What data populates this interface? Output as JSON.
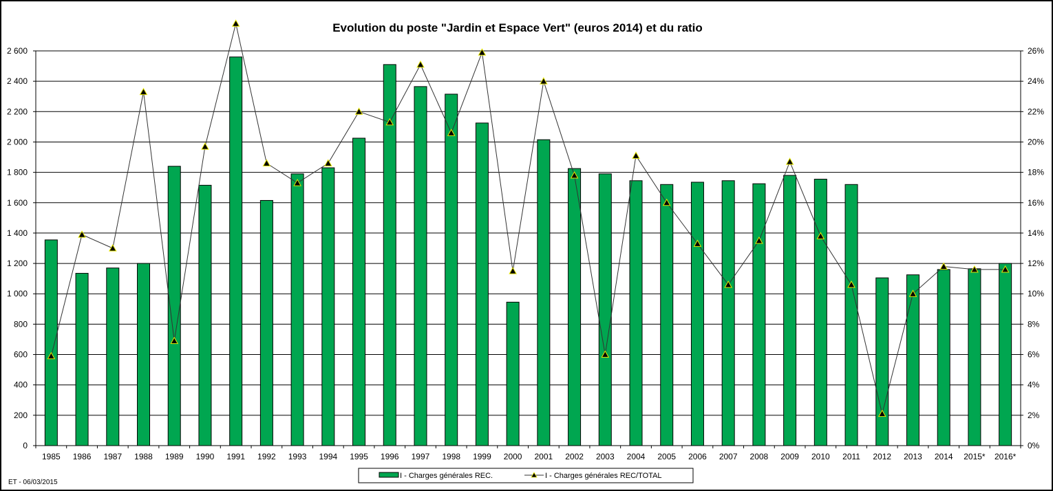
{
  "chart_data": {
    "type": "bar",
    "title": "Evolution du poste \"Jardin et Espace Vert\" (euros 2014) et du ratio",
    "categories": [
      "1985",
      "1986",
      "1987",
      "1988",
      "1989",
      "1990",
      "1991",
      "1992",
      "1993",
      "1994",
      "1995",
      "1996",
      "1997",
      "1998",
      "1999",
      "2000",
      "2001",
      "2002",
      "2003",
      "2004",
      "2005",
      "2006",
      "2007",
      "2008",
      "2009",
      "2010",
      "2011",
      "2012",
      "2013",
      "2014",
      "2015*",
      "2016*"
    ],
    "series": [
      {
        "name": "I - Charges générales REC.",
        "type": "bar",
        "axis": "left",
        "color": "#00a650",
        "values": [
          1355,
          1135,
          1170,
          1200,
          1840,
          1715,
          2560,
          1615,
          1790,
          1830,
          2025,
          2510,
          2365,
          2315,
          2125,
          945,
          2015,
          1825,
          1790,
          1745,
          1720,
          1735,
          1745,
          1725,
          1780,
          1755,
          1720,
          1105,
          1125,
          1160,
          1165,
          1200
        ]
      },
      {
        "name": "I - Charges générales REC/TOTAL",
        "type": "line",
        "axis": "right",
        "color": "#333333",
        "marker_color": "#000000",
        "marker_edge": "#e8e800",
        "values": [
          5.9,
          13.9,
          13.0,
          23.3,
          6.9,
          19.7,
          27.8,
          18.6,
          17.3,
          18.6,
          22.0,
          21.3,
          25.1,
          20.6,
          25.9,
          11.5,
          24.0,
          17.8,
          6.0,
          19.1,
          16.0,
          13.3,
          10.6,
          13.5,
          18.7,
          13.8,
          10.6,
          2.1,
          10.0,
          11.8,
          11.6,
          11.6
        ]
      }
    ],
    "y_left": {
      "ticks": [
        "0",
        "200",
        "400",
        "600",
        "800",
        "1 000",
        "1 200",
        "1 400",
        "1 600",
        "1 800",
        "2 000",
        "2 200",
        "2 400",
        "2 600"
      ],
      "lim": [
        0,
        2600
      ]
    },
    "y_right": {
      "ticks": [
        "0%",
        "2%",
        "4%",
        "6%",
        "8%",
        "10%",
        "12%",
        "14%",
        "16%",
        "18%",
        "20%",
        "22%",
        "24%",
        "26%"
      ],
      "lim": [
        0,
        26
      ]
    },
    "grid": true,
    "legend_position": "bottom-center"
  },
  "footer": "ET - 06/03/2015"
}
